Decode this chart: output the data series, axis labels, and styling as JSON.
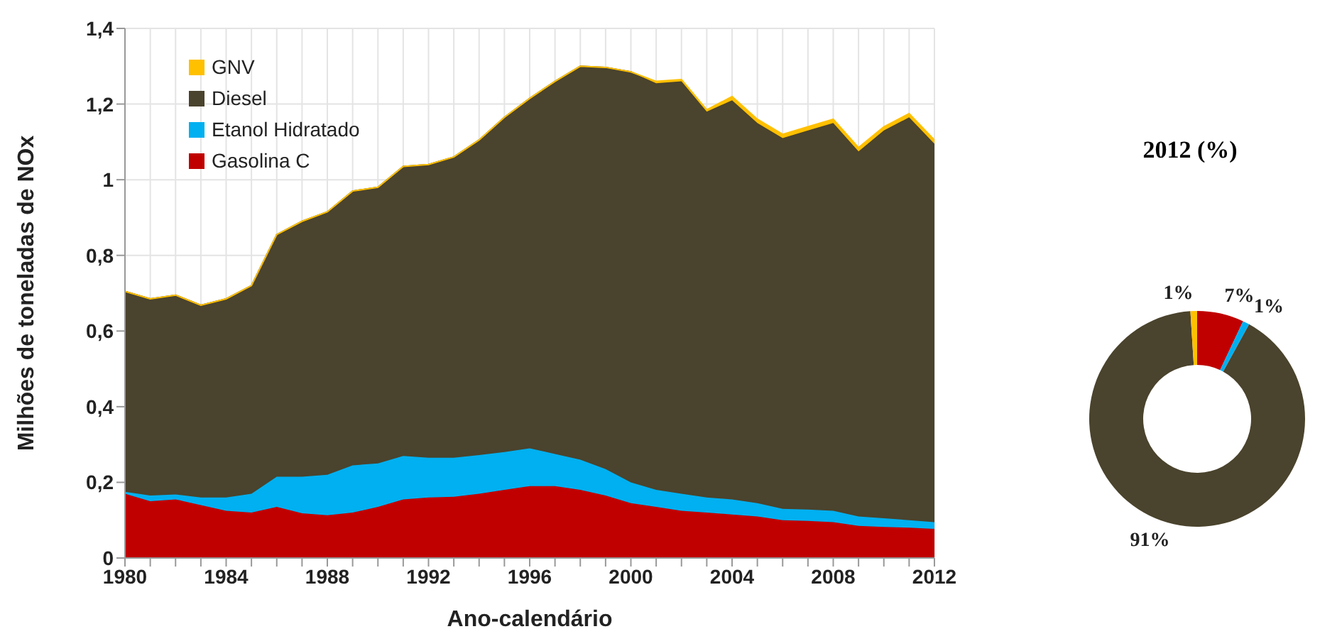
{
  "chart_data": [
    {
      "type": "area",
      "stacked": true,
      "xlabel": "Ano-calendário",
      "ylabel": "Milhões de toneladas de NOx",
      "x": [
        1980,
        1981,
        1982,
        1983,
        1984,
        1985,
        1986,
        1987,
        1988,
        1989,
        1990,
        1991,
        1992,
        1993,
        1994,
        1995,
        1996,
        1997,
        1998,
        1999,
        2000,
        2001,
        2002,
        2003,
        2004,
        2005,
        2006,
        2007,
        2008,
        2009,
        2010,
        2011,
        2012
      ],
      "series": [
        {
          "name": "Gasolina C",
          "color": "#c00000",
          "values": [
            0.17,
            0.15,
            0.155,
            0.14,
            0.125,
            0.12,
            0.135,
            0.118,
            0.113,
            0.12,
            0.135,
            0.155,
            0.16,
            0.162,
            0.17,
            0.18,
            0.19,
            0.19,
            0.18,
            0.165,
            0.145,
            0.135,
            0.125,
            0.12,
            0.115,
            0.11,
            0.1,
            0.098,
            0.095,
            0.085,
            0.082,
            0.08,
            0.077
          ]
        },
        {
          "name": "Etanol Hidratado",
          "color": "#00b0f0",
          "values": [
            0.005,
            0.015,
            0.013,
            0.02,
            0.035,
            0.05,
            0.08,
            0.097,
            0.107,
            0.125,
            0.115,
            0.115,
            0.105,
            0.103,
            0.102,
            0.1,
            0.1,
            0.085,
            0.08,
            0.07,
            0.055,
            0.045,
            0.045,
            0.04,
            0.04,
            0.035,
            0.03,
            0.03,
            0.03,
            0.025,
            0.023,
            0.02,
            0.018
          ]
        },
        {
          "name": "Diesel",
          "color": "#4a432d",
          "values": [
            0.53,
            0.52,
            0.527,
            0.508,
            0.525,
            0.55,
            0.64,
            0.675,
            0.695,
            0.725,
            0.73,
            0.765,
            0.775,
            0.795,
            0.833,
            0.885,
            0.925,
            0.985,
            1.04,
            1.062,
            1.085,
            1.075,
            1.09,
            1.02,
            1.055,
            1.005,
            0.98,
            1.002,
            1.025,
            0.965,
            1.025,
            1.065,
            1.0
          ]
        },
        {
          "name": "GNV",
          "color": "#ffc000",
          "values": [
            0,
            0,
            0,
            0,
            0,
            0,
            0,
            0,
            0,
            0,
            0,
            0,
            0,
            0,
            0,
            0,
            0,
            0,
            0,
            0,
            0,
            0.005,
            0.005,
            0.005,
            0.01,
            0.01,
            0.01,
            0.01,
            0.01,
            0.01,
            0.01,
            0.01,
            0.01
          ]
        }
      ],
      "xlim": [
        1980,
        2012
      ],
      "xticks": [
        1980,
        {
          "value": 1981,
          "label": null
        },
        {
          "value": 1982,
          "label": null
        },
        {
          "value": 1983,
          "label": null
        },
        1984,
        {
          "value": 1985,
          "label": null
        },
        {
          "value": 1986,
          "label": null
        },
        {
          "value": 1987,
          "label": null
        },
        1988,
        {
          "value": 1989,
          "label": null
        },
        {
          "value": 1990,
          "label": null
        },
        {
          "value": 1991,
          "label": null
        },
        1992,
        {
          "value": 1993,
          "label": null
        },
        {
          "value": 1994,
          "label": null
        },
        {
          "value": 1995,
          "label": null
        },
        1996,
        {
          "value": 1997,
          "label": null
        },
        {
          "value": 1998,
          "label": null
        },
        {
          "value": 1999,
          "label": null
        },
        2000,
        {
          "value": 2001,
          "label": null
        },
        {
          "value": 2002,
          "label": null
        },
        {
          "value": 2003,
          "label": null
        },
        2004,
        {
          "value": 2005,
          "label": null
        },
        {
          "value": 2006,
          "label": null
        },
        {
          "value": 2007,
          "label": null
        },
        2008,
        {
          "value": 2009,
          "label": null
        },
        {
          "value": 2010,
          "label": null
        },
        {
          "value": 2011,
          "label": null
        },
        2012
      ],
      "ylim": [
        0,
        1.4
      ],
      "yticks": [
        0,
        {
          "value": 0.2,
          "label": "0,2"
        },
        {
          "value": 0.4,
          "label": "0,4"
        },
        {
          "value": 0.6,
          "label": "0,6"
        },
        {
          "value": 0.8,
          "label": "0,8"
        },
        1,
        {
          "value": 1.2,
          "label": "1,2"
        },
        {
          "value": 1.4,
          "label": "1,4"
        }
      ],
      "grid": true,
      "legend": "top left",
      "marker": "none"
    },
    {
      "type": "donut",
      "title": "2012 (%)",
      "categories": [
        null,
        null,
        null,
        null
      ],
      "values": [
        7,
        1,
        91,
        1
      ],
      "colors": [
        "#c00000",
        "#00b0f0",
        "#4a432d",
        "#ffc000"
      ],
      "value_labels": [
        "7%",
        "1%",
        "91%",
        "1%"
      ]
    }
  ]
}
